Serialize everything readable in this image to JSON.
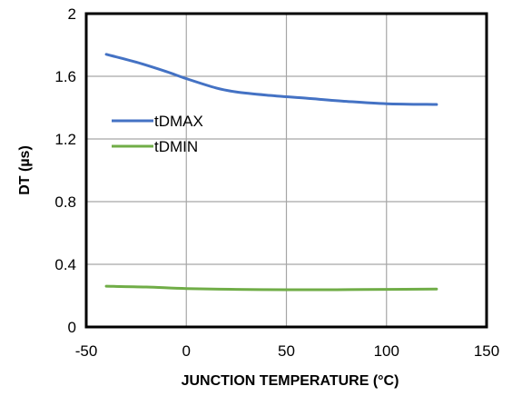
{
  "chart_data": {
    "type": "line",
    "xlabel": "JUNCTION TEMPERATURE (°C)",
    "ylabel": "DT (µs)",
    "xlim": [
      -50,
      150
    ],
    "ylim": [
      0,
      2
    ],
    "x_ticks": [
      -50,
      0,
      50,
      100,
      150
    ],
    "y_ticks": [
      0,
      0.4,
      0.8,
      1.2,
      1.6,
      2
    ],
    "x_tick_labels": [
      "-50",
      "0",
      "50",
      "100",
      "150"
    ],
    "y_tick_labels": [
      "0",
      "0.4",
      "0.8",
      "1.2",
      "1.6",
      "2"
    ],
    "grid": true,
    "legend_position": "left",
    "series": [
      {
        "name": "tDMAX",
        "color": "#4472C4",
        "x": [
          -40,
          -25,
          -10,
          0,
          15,
          25,
          40,
          60,
          80,
          100,
          125
        ],
        "y": [
          1.74,
          1.69,
          1.63,
          1.585,
          1.525,
          1.5,
          1.48,
          1.46,
          1.44,
          1.425,
          1.42
        ]
      },
      {
        "name": "tDMIN",
        "color": "#70AD47",
        "x": [
          -40,
          -20,
          0,
          25,
          50,
          75,
          100,
          125
        ],
        "y": [
          0.26,
          0.255,
          0.245,
          0.24,
          0.238,
          0.238,
          0.24,
          0.242
        ]
      }
    ]
  }
}
